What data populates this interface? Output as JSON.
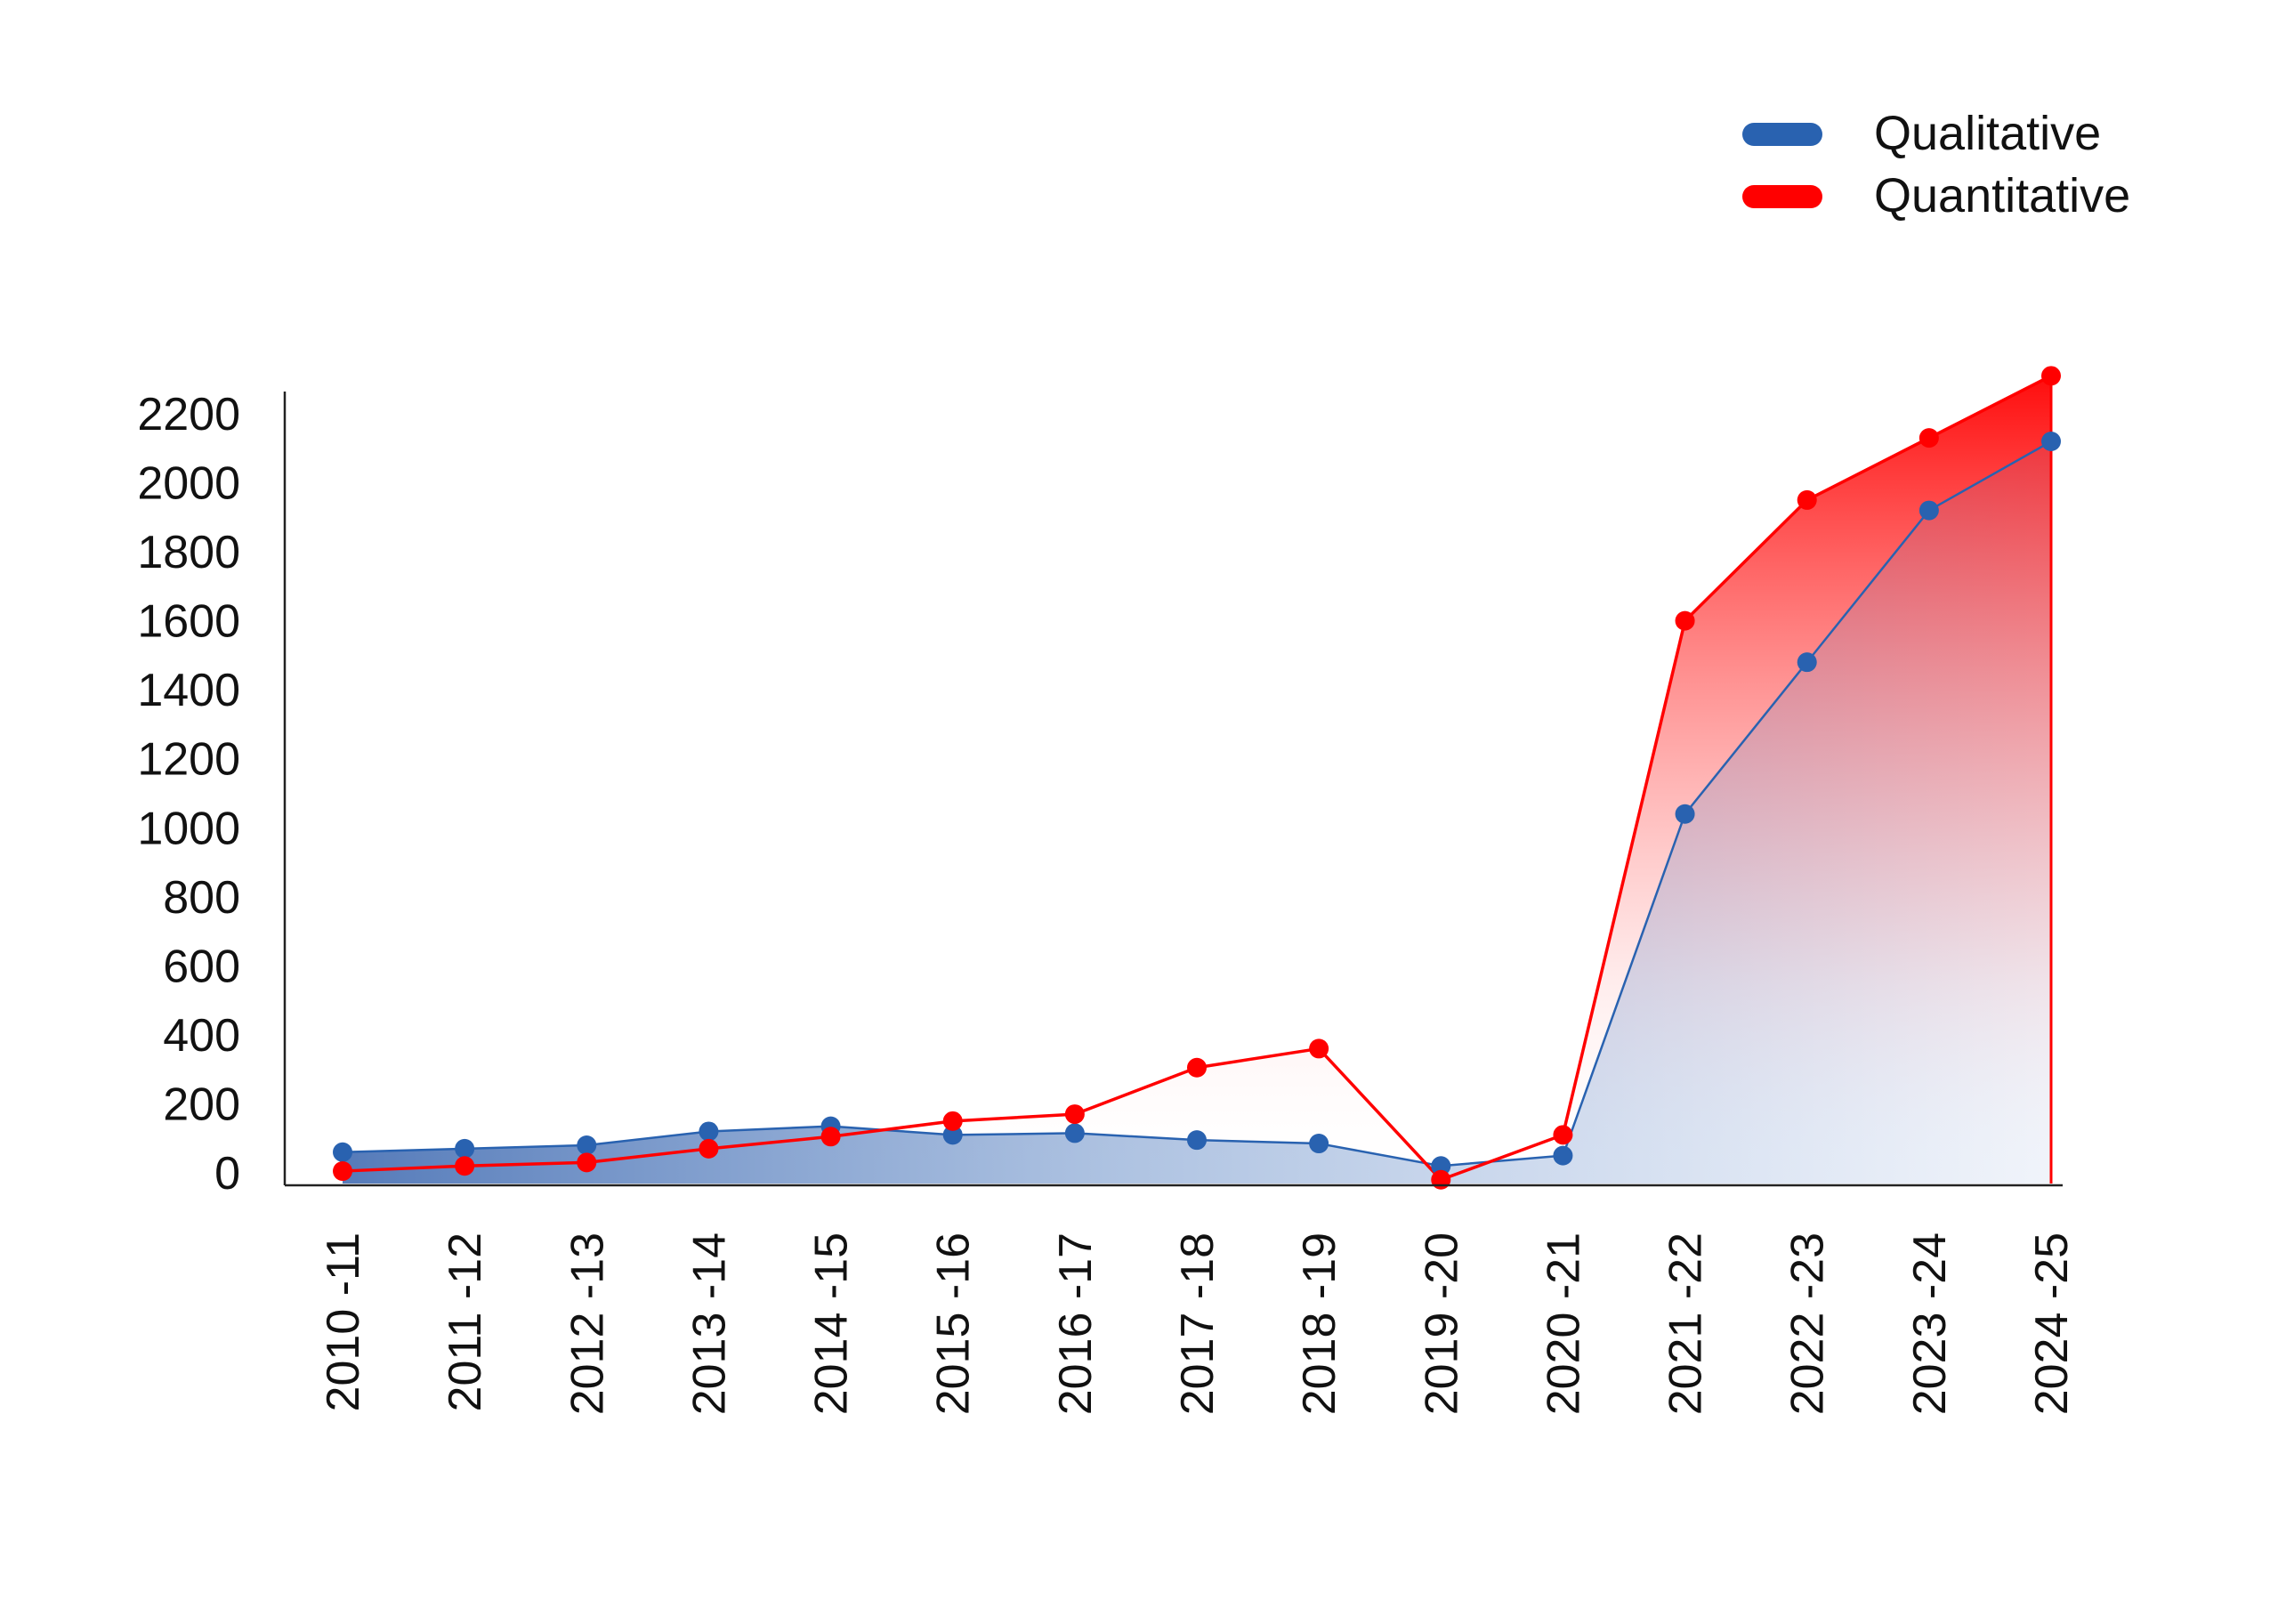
{
  "chart_data": {
    "type": "area",
    "title": "",
    "xlabel": "",
    "ylabel": "",
    "categories": [
      "2010 -11",
      "2011 -12",
      "2012 -13",
      "2013 -14",
      "2014 -15",
      "2015 -16",
      "2016 -17",
      "2017 -18",
      "2018 -19",
      "2019 -20",
      "2020 -21",
      "2021 -22",
      "2022 -23",
      "2023 -24",
      "2024 -25"
    ],
    "ylim": [
      0,
      2200
    ],
    "yticks": [
      "0",
      "200",
      "400",
      "600",
      "800",
      "1000",
      "1200",
      "1400",
      "1600",
      "1800",
      "2000",
      "2200"
    ],
    "legend_position": "top-right",
    "grid": false,
    "series": [
      {
        "name": "Qualitative",
        "color": "#2962b0",
        "values": [
          60,
          70,
          80,
          120,
          135,
          110,
          115,
          95,
          85,
          20,
          50,
          1040,
          1480,
          1920,
          2120
        ]
      },
      {
        "name": "Quantitative",
        "color": "#ff0000",
        "values": [
          5,
          20,
          30,
          70,
          105,
          150,
          170,
          305,
          360,
          -20,
          110,
          1600,
          1950,
          2130,
          2310
        ]
      }
    ]
  }
}
